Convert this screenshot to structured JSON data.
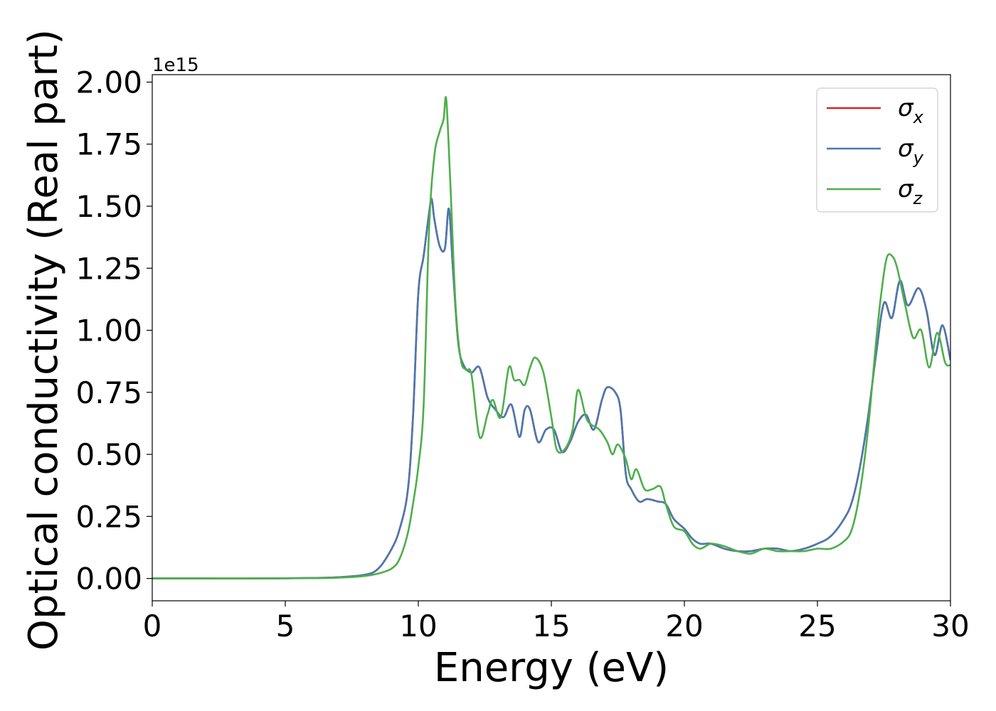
{
  "chart_data": {
    "type": "line",
    "title": "",
    "xlabel": "Energy (eV)",
    "ylabel": "Optical conductivity (Real part)",
    "y_offset_label": "1e15",
    "xlim": [
      0,
      30
    ],
    "ylim": [
      -0.09,
      2.03
    ],
    "y_scale": 1000000000000000.0,
    "grid": false,
    "legend_position": "top-right",
    "x_ticks": [
      0,
      5,
      10,
      15,
      20,
      25,
      30
    ],
    "x_tick_labels": [
      "0",
      "5",
      "10",
      "15",
      "20",
      "25",
      "30"
    ],
    "y_ticks": [
      0,
      0.25,
      0.5,
      0.75,
      1.0,
      1.25,
      1.5,
      1.75,
      2.0
    ],
    "y_tick_labels": [
      "0.00",
      "0.25",
      "0.50",
      "0.75",
      "1.00",
      "1.25",
      "1.50",
      "1.75",
      "2.00"
    ],
    "series": [
      {
        "name": "σx",
        "name_base": "σ",
        "name_sub": "x",
        "color": "#d62728",
        "x": [
          0,
          2,
          4,
          6,
          7,
          8,
          8.5,
          9,
          9.3,
          9.6,
          9.8,
          10,
          10.2,
          10.4,
          10.5,
          10.6,
          10.8,
          11,
          11.15,
          11.3,
          11.5,
          11.7,
          12,
          12.3,
          12.6,
          12.9,
          13.2,
          13.5,
          13.8,
          14,
          14.2,
          14.5,
          14.8,
          15.1,
          15.4,
          15.7,
          16,
          16.3,
          16.6,
          16.9,
          17.1,
          17.4,
          17.6,
          17.8,
          18,
          18.3,
          18.6,
          19,
          19.3,
          19.6,
          20,
          20.3,
          20.6,
          21,
          21.5,
          22,
          22.5,
          23,
          23.5,
          24,
          24.5,
          25,
          25.5,
          26,
          26.3,
          26.6,
          26.9,
          27.2,
          27.5,
          27.8,
          28.1,
          28.4,
          28.8,
          29.1,
          29.4,
          29.7,
          30
        ],
        "values": [
          0,
          0,
          0,
          0.002,
          0.005,
          0.015,
          0.04,
          0.12,
          0.2,
          0.35,
          0.65,
          1.15,
          1.3,
          1.47,
          1.53,
          1.45,
          1.34,
          1.33,
          1.49,
          1.25,
          0.95,
          0.86,
          0.83,
          0.85,
          0.73,
          0.68,
          0.65,
          0.7,
          0.57,
          0.68,
          0.68,
          0.55,
          0.6,
          0.6,
          0.51,
          0.55,
          0.63,
          0.66,
          0.6,
          0.72,
          0.77,
          0.75,
          0.68,
          0.42,
          0.36,
          0.31,
          0.32,
          0.31,
          0.3,
          0.24,
          0.2,
          0.16,
          0.14,
          0.14,
          0.12,
          0.11,
          0.11,
          0.12,
          0.12,
          0.11,
          0.12,
          0.14,
          0.17,
          0.24,
          0.31,
          0.45,
          0.65,
          0.9,
          1.11,
          1.05,
          1.2,
          1.1,
          1.17,
          1.08,
          0.9,
          1.02,
          0.88
        ]
      },
      {
        "name": "σy",
        "name_base": "σ",
        "name_sub": "y",
        "color": "#4a78b0",
        "x": [
          0,
          2,
          4,
          6,
          7,
          8,
          8.5,
          9,
          9.3,
          9.6,
          9.8,
          10,
          10.2,
          10.4,
          10.5,
          10.6,
          10.8,
          11,
          11.15,
          11.3,
          11.5,
          11.7,
          12,
          12.3,
          12.6,
          12.9,
          13.2,
          13.5,
          13.8,
          14,
          14.2,
          14.5,
          14.8,
          15.1,
          15.4,
          15.7,
          16,
          16.3,
          16.6,
          16.9,
          17.1,
          17.4,
          17.6,
          17.8,
          18,
          18.3,
          18.6,
          19,
          19.3,
          19.6,
          20,
          20.3,
          20.6,
          21,
          21.5,
          22,
          22.5,
          23,
          23.5,
          24,
          24.5,
          25,
          25.5,
          26,
          26.3,
          26.6,
          26.9,
          27.2,
          27.5,
          27.8,
          28.1,
          28.4,
          28.8,
          29.1,
          29.4,
          29.7,
          30
        ],
        "values": [
          0,
          0,
          0,
          0.002,
          0.005,
          0.015,
          0.04,
          0.12,
          0.2,
          0.35,
          0.65,
          1.15,
          1.3,
          1.47,
          1.53,
          1.45,
          1.34,
          1.33,
          1.49,
          1.25,
          0.95,
          0.86,
          0.83,
          0.85,
          0.73,
          0.68,
          0.65,
          0.7,
          0.57,
          0.68,
          0.68,
          0.55,
          0.6,
          0.6,
          0.51,
          0.55,
          0.63,
          0.66,
          0.6,
          0.72,
          0.77,
          0.75,
          0.68,
          0.42,
          0.36,
          0.31,
          0.32,
          0.31,
          0.3,
          0.24,
          0.2,
          0.16,
          0.14,
          0.14,
          0.12,
          0.11,
          0.11,
          0.12,
          0.12,
          0.11,
          0.12,
          0.14,
          0.17,
          0.24,
          0.31,
          0.45,
          0.65,
          0.9,
          1.11,
          1.05,
          1.2,
          1.1,
          1.17,
          1.08,
          0.9,
          1.02,
          0.88
        ]
      },
      {
        "name": "σz",
        "name_base": "σ",
        "name_sub": "z",
        "color": "#4daf4a",
        "x": [
          0,
          2,
          4,
          6,
          7,
          8,
          8.5,
          9,
          9.3,
          9.6,
          9.8,
          10,
          10.2,
          10.4,
          10.6,
          10.8,
          10.95,
          11.05,
          11.2,
          11.4,
          11.6,
          11.8,
          12,
          12.3,
          12.6,
          12.8,
          13.1,
          13.4,
          13.6,
          13.8,
          14,
          14.2,
          14.4,
          14.7,
          15,
          15.2,
          15.5,
          15.8,
          16,
          16.3,
          16.5,
          16.8,
          17.1,
          17.3,
          17.5,
          17.8,
          18,
          18.2,
          18.5,
          18.8,
          19.1,
          19.3,
          19.6,
          20,
          20.3,
          20.6,
          21,
          21.5,
          22,
          22.5,
          23,
          23.5,
          24,
          24.5,
          25,
          25.5,
          26,
          26.3,
          26.6,
          26.9,
          27.2,
          27.4,
          27.6,
          27.8,
          28,
          28.3,
          28.6,
          28.9,
          29.2,
          29.5,
          29.8,
          30
        ],
        "values": [
          0,
          0,
          0,
          0.001,
          0.003,
          0.01,
          0.02,
          0.04,
          0.08,
          0.18,
          0.3,
          0.45,
          0.7,
          1.4,
          1.7,
          1.8,
          1.85,
          1.93,
          1.6,
          1.1,
          0.88,
          0.84,
          0.82,
          0.57,
          0.66,
          0.72,
          0.65,
          0.85,
          0.8,
          0.8,
          0.78,
          0.85,
          0.89,
          0.83,
          0.65,
          0.52,
          0.52,
          0.6,
          0.76,
          0.65,
          0.62,
          0.6,
          0.55,
          0.5,
          0.54,
          0.48,
          0.4,
          0.44,
          0.36,
          0.36,
          0.37,
          0.3,
          0.21,
          0.19,
          0.14,
          0.12,
          0.14,
          0.13,
          0.11,
          0.1,
          0.12,
          0.11,
          0.11,
          0.11,
          0.12,
          0.12,
          0.15,
          0.2,
          0.35,
          0.6,
          0.95,
          1.15,
          1.29,
          1.3,
          1.25,
          1.1,
          0.97,
          1.0,
          0.85,
          0.99,
          0.87,
          0.86
        ]
      }
    ]
  }
}
